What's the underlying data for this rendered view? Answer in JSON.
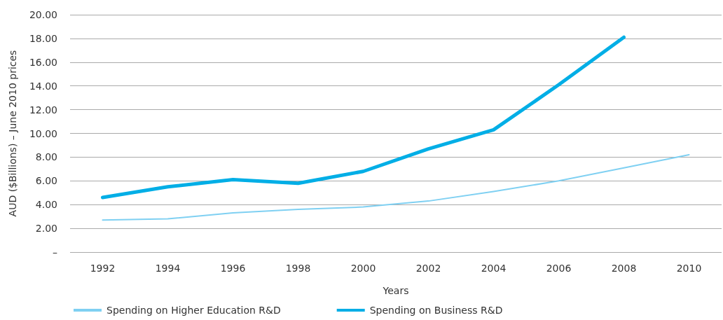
{
  "chart_data": {
    "type": "line",
    "xlabel": "Years",
    "ylabel": "AUD ($Billions) – June 2010 prices",
    "categories": [
      "1992",
      "1994",
      "1996",
      "1998",
      "2000",
      "2002",
      "2004",
      "2006",
      "2008",
      "2010"
    ],
    "series": [
      {
        "name": "Spending on Higher Education R&D",
        "color": "#7fd0f2",
        "values": [
          2.7,
          2.8,
          3.3,
          3.6,
          3.8,
          4.3,
          5.1,
          6.0,
          7.1,
          8.2
        ]
      },
      {
        "name": "Spending on Business R&D",
        "color": "#00aee6",
        "values": [
          4.6,
          5.5,
          6.1,
          5.8,
          6.8,
          8.7,
          10.3,
          14.1,
          18.1,
          null
        ]
      }
    ],
    "ylim": [
      0,
      20
    ],
    "yticks": [
      {
        "value": 0,
        "label": "–"
      },
      {
        "value": 2,
        "label": "2.00"
      },
      {
        "value": 4,
        "label": "4.00"
      },
      {
        "value": 6,
        "label": "6.00"
      },
      {
        "value": 8,
        "label": "8.00"
      },
      {
        "value": 10,
        "label": "10.00"
      },
      {
        "value": 12,
        "label": "12.00"
      },
      {
        "value": 14,
        "label": "14.00"
      },
      {
        "value": 16,
        "label": "16.00"
      },
      {
        "value": 18,
        "label": "18.00"
      },
      {
        "value": 20,
        "label": "20.00"
      }
    ],
    "grid": "y",
    "legend": "bottom",
    "marker": "none",
    "line_style": "solid"
  }
}
